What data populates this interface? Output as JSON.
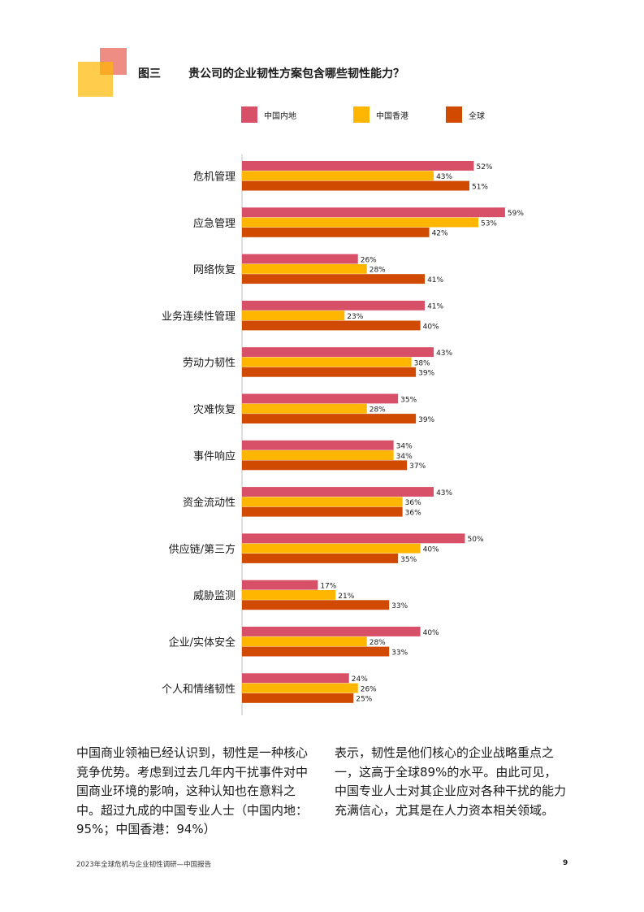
{
  "figure": {
    "label": "图三",
    "title": "贵公司的企业韧性方案包含哪些韧性能力？"
  },
  "colors": {
    "mainland": "#D85067",
    "hongkong": "#FFB600",
    "global": "#D04A02",
    "logo_red": "#E0301E",
    "logo_yellow": "#FFB600"
  },
  "legend": {
    "mainland": "中国内地",
    "hongkong": "中国香港",
    "global": "全球"
  },
  "chart_data": {
    "type": "bar",
    "orientation": "horizontal",
    "categories": [
      "危机管理",
      "应急管理",
      "网络恢复",
      "业务连续性管理",
      "劳动力韧性",
      "灾难恢复",
      "事件响应",
      "资金流动性",
      "供应链/第三方",
      "威胁监测",
      "企业/实体安全",
      "个人和情绪韧性"
    ],
    "series": [
      {
        "name": "中国内地",
        "values": [
          52,
          59,
          26,
          41,
          43,
          35,
          34,
          43,
          50,
          17,
          40,
          24
        ]
      },
      {
        "name": "中国香港",
        "values": [
          43,
          53,
          28,
          23,
          38,
          28,
          34,
          36,
          40,
          21,
          28,
          26
        ]
      },
      {
        "name": "全球",
        "values": [
          51,
          42,
          41,
          40,
          39,
          39,
          37,
          36,
          35,
          33,
          33,
          25
        ]
      }
    ],
    "unit": "%",
    "legend_position": "top",
    "grid": false
  },
  "body": {
    "left": "中国商业领袖已经认识到，韧性是一种核心竞争优势。考虑到过去几年内干扰事件对中国商业环境的影响，这种认知也在意料之中。超过九成的中国专业人士（中国内地：95%；中国香港：94%）",
    "right": "表示，韧性是他们核心的企业战略重点之一，这高于全球89%的水平。由此可见，中国专业人士对其企业应对各种干扰的能力充满信心，尤其是在人力资本相关领域。"
  },
  "footer": {
    "text": "2023年全球危机与企业韧性调研—中国报告",
    "page": "9"
  }
}
